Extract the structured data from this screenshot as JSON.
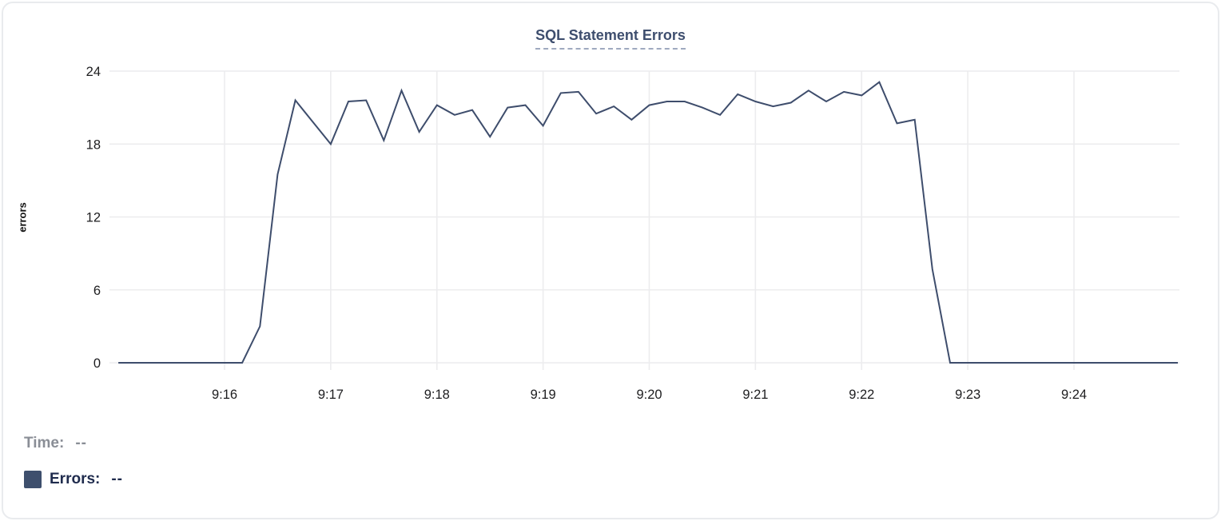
{
  "title": "SQL Statement Errors",
  "y_axis_title": "errors",
  "legend": {
    "time_label": "Time:",
    "time_value": "--",
    "errors_label": "Errors:",
    "errors_value": "--"
  },
  "colors": {
    "line": "#3e4d6c",
    "title": "#3e4e6e",
    "title_underline": "#9fa9bf",
    "grid": "#ececee",
    "axis_text": "#1d1d1f",
    "legend_time": "#8a8e96",
    "legend_errors": "#1f2b4d",
    "swatch": "#3e4f6d",
    "card_border": "#e9ebee"
  },
  "chart_data": {
    "type": "line",
    "title": "SQL Statement Errors",
    "xlabel": "",
    "ylabel": "errors",
    "ylim": [
      0,
      24
    ],
    "y_ticks": [
      0,
      6,
      12,
      18,
      24
    ],
    "x_ticks": [
      "9:16",
      "9:17",
      "9:18",
      "9:19",
      "9:20",
      "9:21",
      "9:22",
      "9:23",
      "9:24"
    ],
    "grid": true,
    "legend_position": "bottom-left",
    "series": [
      {
        "name": "Errors",
        "color": "#3e4d6c",
        "x": [
          "9:15:00",
          "9:15:10",
          "9:15:20",
          "9:15:30",
          "9:15:40",
          "9:15:50",
          "9:16:00",
          "9:16:10",
          "9:16:20",
          "9:16:30",
          "9:16:40",
          "9:16:50",
          "9:17:00",
          "9:17:10",
          "9:17:20",
          "9:17:30",
          "9:17:40",
          "9:17:50",
          "9:18:00",
          "9:18:10",
          "9:18:20",
          "9:18:30",
          "9:18:40",
          "9:18:50",
          "9:19:00",
          "9:19:10",
          "9:19:20",
          "9:19:30",
          "9:19:40",
          "9:19:50",
          "9:20:00",
          "9:20:10",
          "9:20:20",
          "9:20:30",
          "9:20:40",
          "9:20:50",
          "9:21:00",
          "9:21:10",
          "9:21:20",
          "9:21:30",
          "9:21:40",
          "9:21:50",
          "9:22:00",
          "9:22:10",
          "9:22:20",
          "9:22:30",
          "9:22:40",
          "9:22:50",
          "9:23:00",
          "9:23:10",
          "9:23:20",
          "9:23:30",
          "9:23:40",
          "9:23:50",
          "9:24:00",
          "9:24:10",
          "9:24:20",
          "9:24:30",
          "9:24:40",
          "9:24:50",
          "9:25:00"
        ],
        "values": [
          0,
          0,
          0,
          0,
          0,
          0,
          0,
          0,
          3,
          15.5,
          21.6,
          19.8,
          18,
          21.5,
          21.6,
          18.3,
          22.4,
          19,
          21.2,
          20.4,
          20.8,
          18.6,
          21,
          21.2,
          19.5,
          22.2,
          22.3,
          20.5,
          21.1,
          20,
          21.2,
          21.5,
          21.5,
          21,
          20.4,
          22.1,
          21.5,
          21.1,
          21.4,
          22.4,
          21.5,
          22.3,
          22,
          23.1,
          19.7,
          20,
          7.7,
          0,
          0,
          0,
          0,
          0,
          0,
          0,
          0,
          0,
          0,
          0,
          0,
          0,
          0
        ]
      }
    ]
  }
}
